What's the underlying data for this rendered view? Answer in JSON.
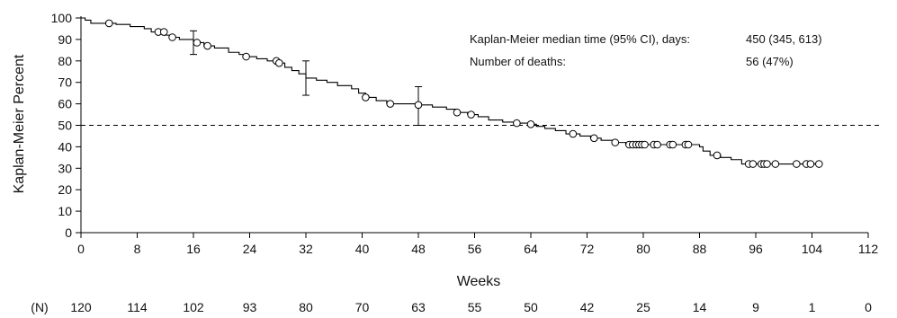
{
  "chart_data": {
    "type": "line",
    "subtype": "kaplan-meier",
    "title": "",
    "xlabel": "Weeks",
    "ylabel": "Kaplan-Meier Percent",
    "xlim": [
      0,
      112
    ],
    "ylim": [
      0,
      100
    ],
    "xticks": [
      0,
      8,
      16,
      24,
      32,
      40,
      48,
      56,
      64,
      72,
      80,
      88,
      96,
      104,
      112
    ],
    "yticks": [
      0,
      10,
      20,
      30,
      40,
      50,
      60,
      70,
      80,
      90,
      100
    ],
    "reference_line": {
      "y": 50,
      "style": "dashed"
    },
    "series": [
      {
        "steps": [
          [
            0,
            100
          ],
          [
            0.6,
            99
          ],
          [
            1.4,
            97.5
          ],
          [
            5,
            97
          ],
          [
            7,
            96
          ],
          [
            9,
            95
          ],
          [
            10,
            93.5
          ],
          [
            12,
            92
          ],
          [
            13,
            91
          ],
          [
            14,
            90
          ],
          [
            16,
            88.5
          ],
          [
            17.5,
            87
          ],
          [
            19,
            86
          ],
          [
            21,
            84
          ],
          [
            22.5,
            83
          ],
          [
            23.5,
            82
          ],
          [
            25,
            81
          ],
          [
            26.5,
            80
          ],
          [
            28,
            79
          ],
          [
            29,
            77
          ],
          [
            30,
            75.5
          ],
          [
            31,
            74
          ],
          [
            32,
            72
          ],
          [
            33.5,
            71
          ],
          [
            35,
            70
          ],
          [
            36.5,
            68.5
          ],
          [
            38.5,
            67
          ],
          [
            39.5,
            65
          ],
          [
            40.5,
            63
          ],
          [
            42,
            61.5
          ],
          [
            43.5,
            60
          ],
          [
            48,
            59.5
          ],
          [
            50,
            58.5
          ],
          [
            52,
            57.5
          ],
          [
            53.5,
            56
          ],
          [
            55,
            55
          ],
          [
            56.5,
            54
          ],
          [
            58,
            52.5
          ],
          [
            60,
            51.5
          ],
          [
            62,
            51
          ],
          [
            64,
            50.5
          ],
          [
            64.8,
            49.5
          ],
          [
            66,
            48.5
          ],
          [
            67.5,
            47.5
          ],
          [
            69,
            46
          ],
          [
            71,
            45
          ],
          [
            72.5,
            44
          ],
          [
            74,
            43
          ],
          [
            76,
            42
          ],
          [
            77.5,
            41
          ],
          [
            88,
            40
          ],
          [
            88.5,
            38
          ],
          [
            89.5,
            36
          ],
          [
            91,
            35
          ],
          [
            92.5,
            34
          ],
          [
            94,
            32
          ],
          [
            105,
            32
          ]
        ],
        "censored": [
          4,
          11,
          11.8,
          13,
          16.5,
          18,
          23.5,
          27.8,
          28.2,
          40.5,
          44,
          48,
          53.5,
          55.5,
          62,
          64,
          70,
          73,
          76,
          78,
          78.5,
          79,
          79.4,
          79.8,
          80.2,
          81.5,
          82,
          83.8,
          84.2,
          86,
          86.4,
          90.5,
          95,
          95.6,
          96.8,
          97.2,
          97.6,
          98.8,
          101.8,
          103.2,
          103.8,
          105
        ],
        "error_bars": [
          {
            "x": 16,
            "lower": 83,
            "upper": 94
          },
          {
            "x": 32,
            "lower": 64,
            "upper": 80
          },
          {
            "x": 48,
            "lower": 50,
            "upper": 68
          }
        ]
      }
    ],
    "annotations": [
      {
        "label": "Kaplan-Meier median time (95% CI), days:",
        "value": "450 (345, 613)"
      },
      {
        "label": "Number of deaths:",
        "value": "56 (47%)"
      }
    ],
    "risk_table": {
      "label": "(N)",
      "weeks": [
        0,
        8,
        16,
        24,
        32,
        40,
        48,
        56,
        64,
        72,
        80,
        88,
        96,
        104,
        112
      ],
      "values": [
        "120",
        "114",
        "102",
        "93",
        "80",
        "70",
        "63",
        "55",
        "50",
        "42",
        "25",
        "14",
        "9",
        "1",
        "0"
      ]
    }
  }
}
